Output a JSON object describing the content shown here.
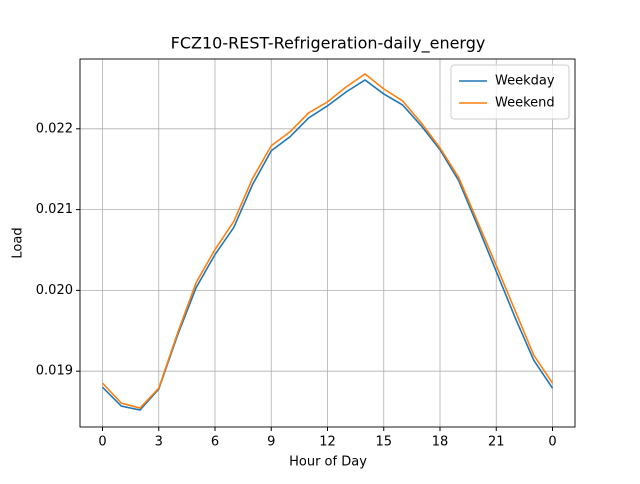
{
  "chart_data": {
    "type": "line",
    "title": "FCZ10-REST-Refrigeration-daily_energy",
    "x_label": "Hour of Day",
    "y_label": "Load",
    "x": [
      0,
      1,
      2,
      3,
      4,
      5,
      6,
      7,
      8,
      9,
      10,
      11,
      12,
      13,
      14,
      15,
      16,
      17,
      18,
      19,
      20,
      21,
      22,
      23,
      24
    ],
    "series": [
      {
        "name": "Weekday",
        "color": "#1f77b4",
        "values": [
          0.018802,
          0.018568,
          0.018519,
          0.018778,
          0.019444,
          0.020037,
          0.020444,
          0.020778,
          0.021309,
          0.021728,
          0.021901,
          0.022136,
          0.022284,
          0.022457,
          0.022605,
          0.022432,
          0.022296,
          0.022037,
          0.021741,
          0.021358,
          0.020802,
          0.020235,
          0.019667,
          0.019136,
          0.01879
        ]
      },
      {
        "name": "Weekend",
        "color": "#ff7f0e",
        "values": [
          0.018852,
          0.018605,
          0.018543,
          0.01879,
          0.019469,
          0.020099,
          0.020506,
          0.020852,
          0.021383,
          0.02179,
          0.021963,
          0.022198,
          0.022333,
          0.022519,
          0.022679,
          0.022494,
          0.022346,
          0.022074,
          0.021765,
          0.021395,
          0.020852,
          0.020309,
          0.019753,
          0.019198,
          0.018852
        ]
      }
    ],
    "xlim": [
      -1.2,
      25.2
    ],
    "xticks": [
      0,
      3,
      6,
      9,
      12,
      15,
      18,
      21,
      {
        "value": 24,
        "label": "0"
      }
    ],
    "ylim": [
      0.018309,
      0.022864
    ],
    "yticks": [
      0.019,
      {
        "value": 0.02,
        "label": "0.020"
      },
      0.021,
      0.022
    ],
    "grid": true,
    "legend": "upper right"
  }
}
